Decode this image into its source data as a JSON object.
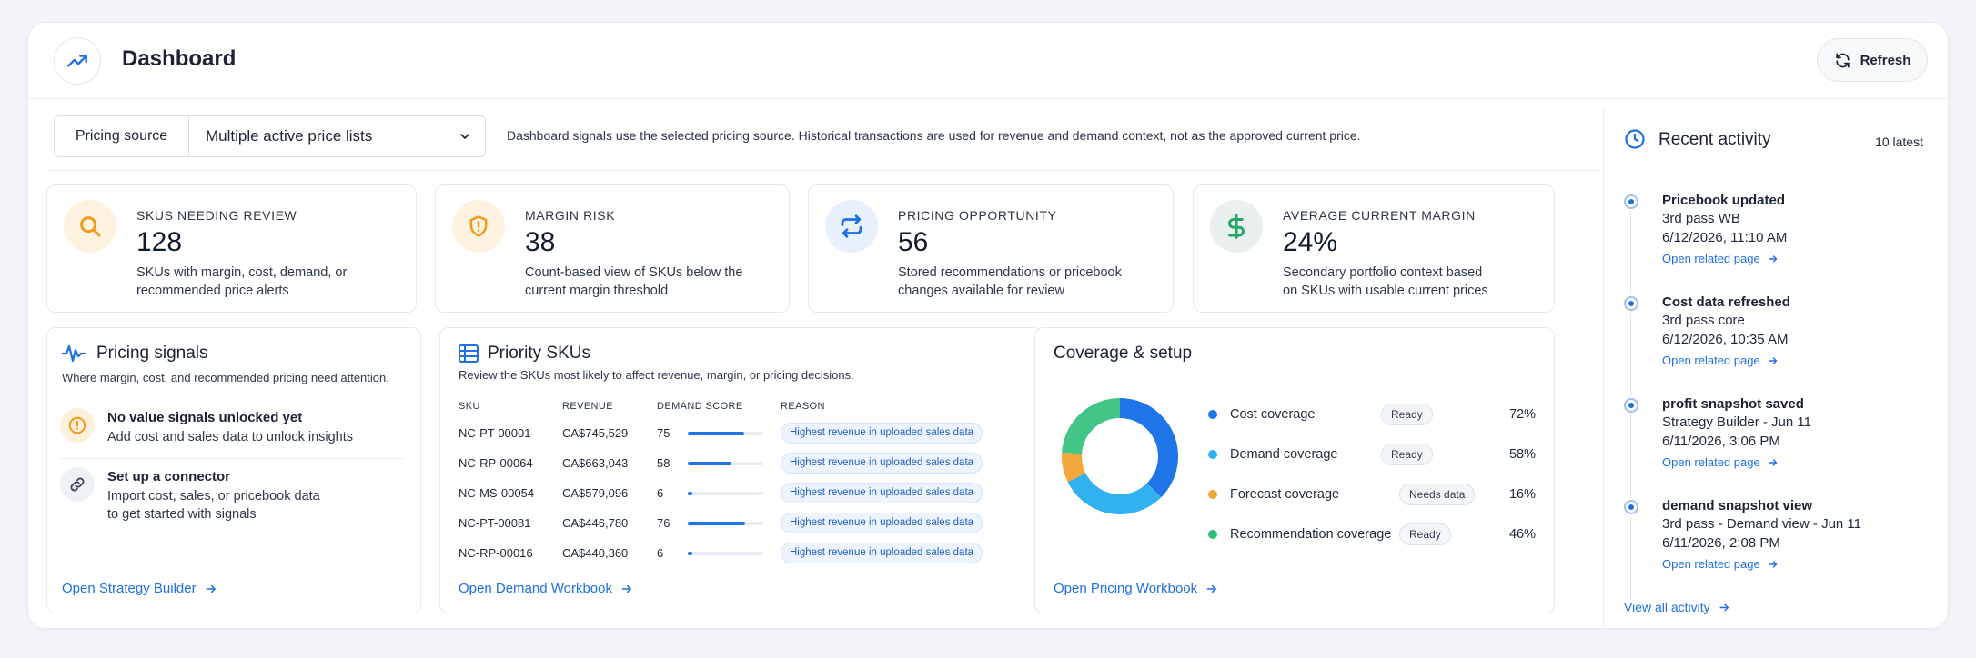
{
  "header": {
    "title": "Dashboard",
    "refresh_label": "Refresh",
    "logo_icon": "trending-up-icon"
  },
  "pricing_source": {
    "label": "Pricing source",
    "selected": "Multiple active price lists",
    "note": "Dashboard signals use the selected pricing source. Historical transactions are used for revenue and demand context, not as the approved current price."
  },
  "metrics": [
    {
      "label": "SKUS NEEDING REVIEW",
      "value": "128",
      "desc_line1": "SKUs with margin, cost, demand, or",
      "desc_line2": "recommended price alerts",
      "icon": "search-icon",
      "color": "#f5a524"
    },
    {
      "label": "MARGIN RISK",
      "value": "38",
      "desc_line1": "Count-based view of SKUs below the",
      "desc_line2": "current margin threshold",
      "icon": "shield-alert-icon",
      "color": "#f5a524"
    },
    {
      "label": "PRICING OPPORTUNITY",
      "value": "56",
      "desc_line1": "Stored recommendations or pricebook",
      "desc_line2": "changes available for review",
      "icon": "repeat-icon",
      "color": "#1f6fe0"
    },
    {
      "label": "AVERAGE CURRENT MARGIN",
      "value": "24%",
      "desc_line1": "Secondary portfolio context based",
      "desc_line2": "on SKUs with usable current prices",
      "icon": "dollar-icon",
      "color": "#27a86a"
    }
  ],
  "pricing_signals": {
    "title": "Pricing signals",
    "subtitle": "Where margin, cost, and recommended pricing need attention.",
    "items": [
      {
        "title": "No value signals unlocked yet",
        "desc_line1": "Add cost and sales data to unlock insights",
        "desc_line2": "",
        "icon": "alert-circle-icon"
      },
      {
        "title": "Set up a connector",
        "desc_line1": "Import cost, sales, or pricebook data",
        "desc_line2": "to get started with signals",
        "icon": "link-icon"
      }
    ],
    "link": "Open Strategy Builder"
  },
  "priority_skus": {
    "title": "Priority SKUs",
    "subtitle": "Review the SKUs most likely to affect revenue, margin, or pricing decisions.",
    "columns": [
      "SKU",
      "REVENUE",
      "DEMAND SCORE",
      "REASON"
    ],
    "rows": [
      {
        "sku": "NC-PT-00001",
        "revenue": "CA$745,529",
        "score": "75",
        "score_pct": 75,
        "reason": "Highest revenue in uploaded sales data"
      },
      {
        "sku": "NC-RP-00064",
        "revenue": "CA$663,043",
        "score": "58",
        "score_pct": 58,
        "reason": "Highest revenue in uploaded sales data"
      },
      {
        "sku": "NC-MS-00054",
        "revenue": "CA$579,096",
        "score": "6",
        "score_pct": 6,
        "reason": "Highest revenue in uploaded sales data"
      },
      {
        "sku": "NC-PT-00081",
        "revenue": "CA$446,780",
        "score": "76",
        "score_pct": 76,
        "reason": "Highest revenue in uploaded sales data"
      },
      {
        "sku": "NC-RP-00016",
        "revenue": "CA$440,360",
        "score": "6",
        "score_pct": 6,
        "reason": "Highest revenue in uploaded sales data"
      }
    ],
    "link": "Open Demand Workbook"
  },
  "coverage": {
    "title": "Coverage & setup",
    "items": [
      {
        "name": "Cost coverage",
        "status": "Ready",
        "pct": "72%",
        "value": 72,
        "color": "#1f74e8"
      },
      {
        "name": "Demand coverage",
        "status": "Ready",
        "pct": "58%",
        "value": 58,
        "color": "#31b1ee"
      },
      {
        "name": "Forecast coverage",
        "status": "Needs data",
        "pct": "16%",
        "value": 16,
        "color": "#f2a73b"
      },
      {
        "name": "Recommendation coverage",
        "status": "Ready",
        "pct": "46%",
        "value": 46,
        "color": "#2fbf7a"
      }
    ],
    "link": "Open Pricing Workbook"
  },
  "activity": {
    "title": "Recent activity",
    "count": "10 latest",
    "items": [
      {
        "title": "Pricebook updated",
        "sub": "3rd pass WB",
        "time": "6/12/2026, 11:10 AM",
        "link": "Open related page"
      },
      {
        "title": "Cost data refreshed",
        "sub": "3rd pass core",
        "time": "6/12/2026, 10:35 AM",
        "link": "Open related page"
      },
      {
        "title": "profit snapshot saved",
        "sub": "Strategy Builder - Jun 11",
        "time": "6/11/2026, 3:06 PM",
        "link": "Open related page"
      },
      {
        "title": "demand snapshot view",
        "sub": "3rd pass - Demand view - Jun 11",
        "time": "6/11/2026, 2:08 PM",
        "link": "Open related page"
      }
    ],
    "view_all": "View all activity"
  }
}
